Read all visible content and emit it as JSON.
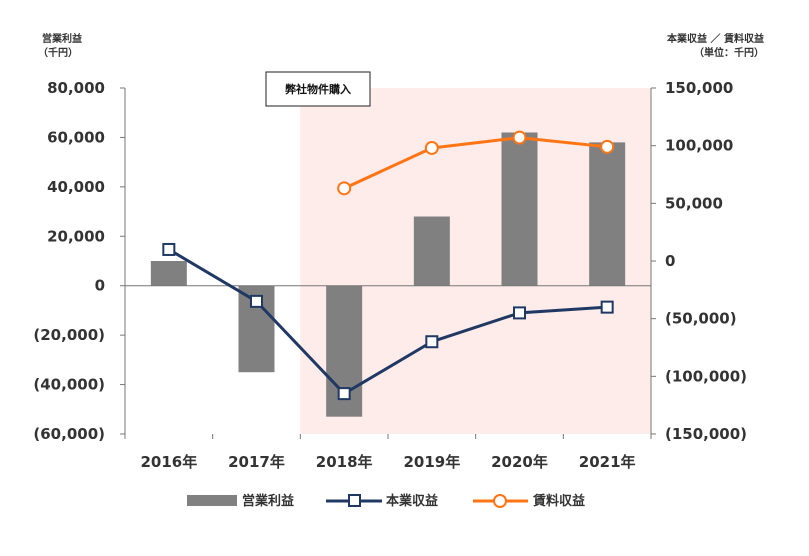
{
  "chart_data": {
    "type": "bar+line",
    "categories": [
      "2016年",
      "2017年",
      "2018年",
      "2019年",
      "2020年",
      "2021年"
    ],
    "left_axis": {
      "title_line1": "営業利益",
      "title_line2": "（千円）",
      "ylim": [
        -60000,
        80000
      ],
      "ticks": [
        80000,
        60000,
        40000,
        20000,
        0,
        -20000,
        -40000,
        -60000
      ],
      "tick_labels": [
        "80,000",
        "60,000",
        "40,000",
        "20,000",
        "0",
        "(20,000)",
        "(40,000)",
        "(60,000)"
      ]
    },
    "right_axis": {
      "title_line1": "本業収益 ／ 賃料収益",
      "title_line2": "（単位：千円）",
      "ylim": [
        -150000,
        150000
      ],
      "ticks": [
        150000,
        100000,
        50000,
        0,
        -50000,
        -100000,
        -150000
      ],
      "tick_labels": [
        "150,000",
        "100,000",
        "50,000",
        "0",
        "(50,000)",
        "(100,000)",
        "(150,000)"
      ]
    },
    "series": [
      {
        "name": "営業利益",
        "kind": "bar",
        "axis": "left",
        "color": "#808080",
        "values": [
          10000,
          -35000,
          -53000,
          28000,
          62000,
          58000
        ]
      },
      {
        "name": "本業収益",
        "kind": "line",
        "axis": "right",
        "color": "#1f3864",
        "marker": "square",
        "values": [
          10000,
          -35000,
          -115000,
          -70000,
          -45000,
          -40000
        ]
      },
      {
        "name": "賃料収益",
        "kind": "line",
        "axis": "right",
        "color": "#ff7514",
        "marker": "circle",
        "values": [
          null,
          null,
          63000,
          98000,
          107000,
          99000
        ]
      }
    ],
    "annotation": {
      "label": "弊社物件購入",
      "shaded_from_category": "2018年",
      "shade_color": "#fdecea"
    }
  }
}
